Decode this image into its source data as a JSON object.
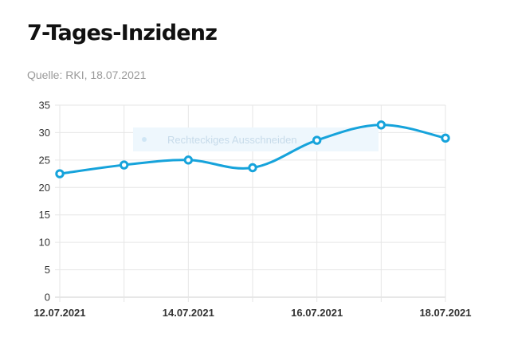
{
  "page": {
    "title": "7-Tages-Inzidenz",
    "subtitle": "Quelle: RKI, 18.07.2021"
  },
  "overlay": {
    "label": "Rechteckiges Ausschneiden"
  },
  "colors": {
    "series": "#16a3db",
    "grid": "#e6e6e6",
    "overlay_bg": "#eef7fd",
    "overlay_dot": "#cfe6f5"
  },
  "chart_data": {
    "type": "line",
    "title": "",
    "xlabel": "",
    "ylabel": "",
    "x": [
      "12.07.2021",
      "13.07.2021",
      "14.07.2021",
      "15.07.2021",
      "16.07.2021",
      "17.07.2021",
      "18.07.2021"
    ],
    "x_tick_labels": [
      "12.07.2021",
      "14.07.2021",
      "16.07.2021",
      "18.07.2021"
    ],
    "y_ticks": [
      0,
      5,
      10,
      15,
      20,
      25,
      30,
      35
    ],
    "ylim": [
      0,
      35
    ],
    "grid": true,
    "legend": "none",
    "series": [
      {
        "values": [
          22.5,
          24.1,
          25.0,
          23.6,
          28.6,
          31.4,
          29.0
        ]
      }
    ]
  }
}
